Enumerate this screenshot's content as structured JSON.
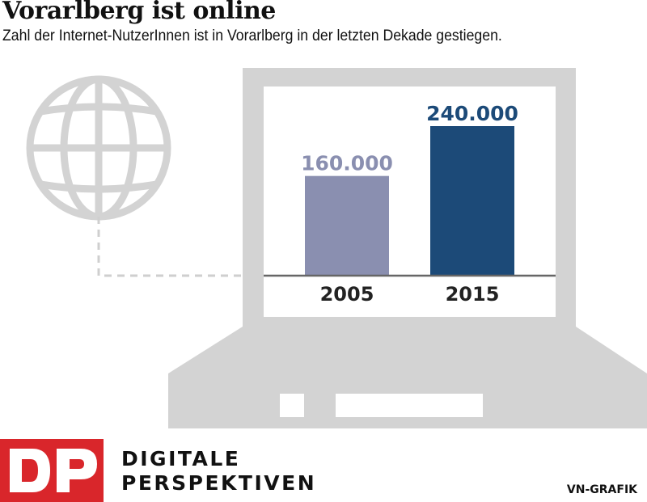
{
  "header": {
    "title": "Vorarlberg ist online",
    "subtitle": "Zahl der Internet-NutzerInnen ist in Vorarlberg in der letzten Dekade gestiegen."
  },
  "chart_data": {
    "type": "bar",
    "title": "",
    "xlabel": "",
    "ylabel": "",
    "categories": [
      "2005",
      "2015"
    ],
    "values": [
      160000,
      240000
    ],
    "value_labels": [
      "160.000",
      "240.000"
    ],
    "colors": [
      "#8a8fb0",
      "#1c4a78"
    ],
    "ylim": [
      0,
      240000
    ],
    "grid": false,
    "legend": "none"
  },
  "decor": {
    "globe_icon": "globe-icon",
    "laptop_icon": "laptop-icon",
    "device_color": "#d3d3d3"
  },
  "brand": {
    "logo_letters": "DP",
    "logo_color": "#d9262b",
    "line1": "DIGITALE",
    "line2": "PERSPEKTIVEN",
    "credit": "VN-GRAFIK"
  }
}
